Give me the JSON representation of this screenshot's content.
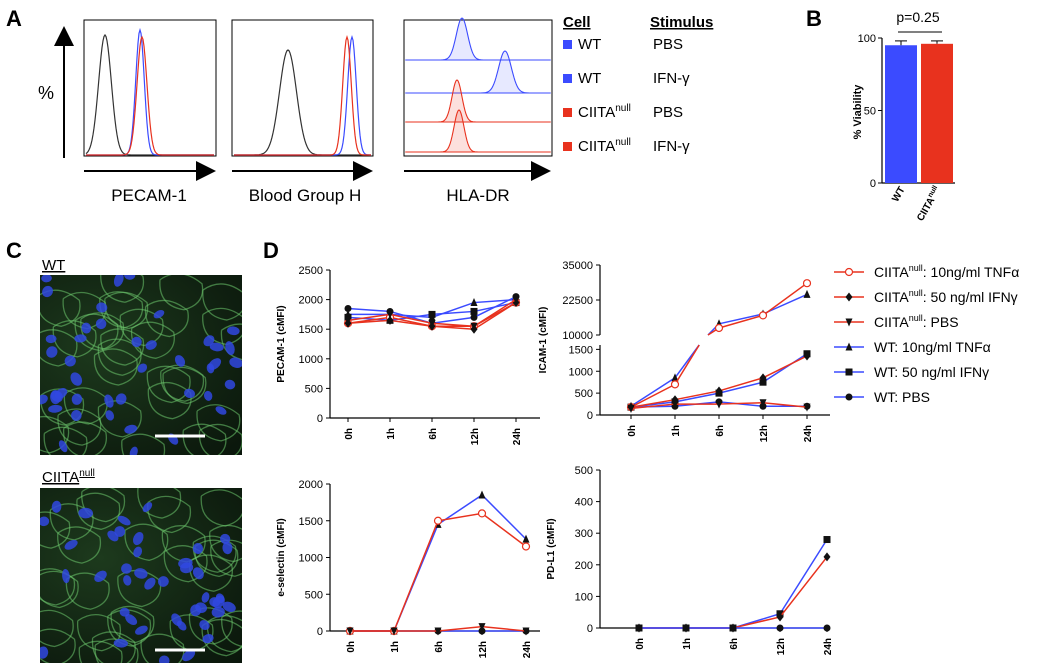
{
  "panels": {
    "A": {
      "letter": "A",
      "y_label": "%",
      "histograms": [
        {
          "xlabel": "PECAM-1"
        },
        {
          "xlabel": "Blood Group H"
        },
        {
          "xlabel": "HLA-DR"
        }
      ],
      "legend": {
        "header_cell": "Cell",
        "header_stimulus": "Stimulus",
        "rows": [
          {
            "cell": "WT",
            "sup": "",
            "stimulus": "PBS",
            "color": "#3b4bff"
          },
          {
            "cell": "WT",
            "sup": "",
            "stimulus": "IFN-γ",
            "color": "#3b4bff"
          },
          {
            "cell": "CIITA",
            "sup": "null",
            "stimulus": "PBS",
            "color": "#e8321e"
          },
          {
            "cell": "CIITA",
            "sup": "null",
            "stimulus": "IFN-γ",
            "color": "#e8321e"
          }
        ]
      }
    },
    "B": {
      "letter": "B",
      "pvalue": "p=0.25",
      "chart_data": {
        "type": "bar",
        "categories": [
          "WT",
          "CIITA"
        ],
        "category_sup": [
          "",
          "null"
        ],
        "values": [
          95,
          96
        ],
        "errors": [
          3,
          2
        ],
        "colors": [
          "#3b4bff",
          "#e8321e"
        ],
        "ylabel": "% Viability",
        "ylim": [
          0,
          100
        ],
        "yticks": [
          "0",
          "50",
          "100"
        ]
      }
    },
    "C": {
      "letter": "C",
      "label_wt": "WT",
      "label_ko": "CIITA",
      "label_ko_sup": "null"
    },
    "D": {
      "letter": "D",
      "legend": [
        {
          "text": "CIITA",
          "sup": "null",
          "rest": ": 10ng/ml TNFα",
          "color": "#e8321e",
          "marker": "circle-open"
        },
        {
          "text": "CIITA",
          "sup": "null",
          "rest": ": 50 ng/ml IFNγ",
          "color": "#e8321e",
          "marker": "diamond"
        },
        {
          "text": "CIITA",
          "sup": "null",
          "rest": ": PBS",
          "color": "#e8321e",
          "marker": "triangle-down"
        },
        {
          "text": "WT: 10ng/ml TNFα",
          "sup": "",
          "rest": "",
          "color": "#3b4bff",
          "marker": "triangle-up"
        },
        {
          "text": "WT: 50 ng/ml IFNγ",
          "sup": "",
          "rest": "",
          "color": "#3b4bff",
          "marker": "square"
        },
        {
          "text": "WT: PBS",
          "sup": "",
          "rest": "",
          "color": "#3b4bff",
          "marker": "circle"
        }
      ]
    }
  },
  "chart_data": [
    {
      "type": "line",
      "ylabel": "PECAM-1 (cMFI)",
      "categories": [
        "0h",
        "1h",
        "6h",
        "12h",
        "24h"
      ],
      "ylim": [
        0,
        2500
      ],
      "yticks": [
        0,
        500,
        1000,
        1500,
        2000,
        2500
      ],
      "series": [
        {
          "name": "WT: 10ng/ml TNFα",
          "values": [
            1750,
            1750,
            1700,
            1950,
            2000
          ]
        },
        {
          "name": "WT: 50 ng/ml IFNγ",
          "values": [
            1700,
            1650,
            1750,
            1800,
            1950
          ]
        },
        {
          "name": "WT: PBS",
          "values": [
            1850,
            1800,
            1600,
            1700,
            2050
          ]
        },
        {
          "name": "CIITA null: 10ng/ml TNFα",
          "values": [
            1600,
            1700,
            1550,
            1550,
            1950
          ]
        },
        {
          "name": "CIITA null: 50 ng/ml IFNγ",
          "values": [
            1600,
            1650,
            1550,
            1500,
            1950
          ]
        },
        {
          "name": "CIITA null: PBS",
          "values": [
            1650,
            1750,
            1600,
            1550,
            2000
          ]
        }
      ]
    },
    {
      "type": "line",
      "ylabel": "ICAM-1 (cMFI)",
      "categories": [
        "0h",
        "1h",
        "6h",
        "12h",
        "24h"
      ],
      "yticks_lower": [
        0,
        500,
        1000,
        1500
      ],
      "yticks_upper": [
        "10000",
        "22500",
        "35000"
      ],
      "series": [
        {
          "name": "WT: 10ng/ml TNFα",
          "values": [
            200,
            850,
            14000,
            17500,
            24500
          ]
        },
        {
          "name": "WT: 50 ng/ml IFNγ",
          "values": [
            180,
            300,
            500,
            750,
            1400
          ]
        },
        {
          "name": "WT: PBS",
          "values": [
            180,
            200,
            300,
            200,
            200
          ]
        },
        {
          "name": "CIITA null: 10ng/ml TNFα",
          "values": [
            180,
            700,
            12500,
            17000,
            28500
          ]
        },
        {
          "name": "CIITA null: 50 ng/ml IFNγ",
          "values": [
            180,
            350,
            550,
            850,
            1350
          ]
        },
        {
          "name": "CIITA null: PBS",
          "values": [
            150,
            250,
            250,
            280,
            180
          ]
        }
      ]
    },
    {
      "type": "line",
      "ylabel": "e-selectin (cMFI)",
      "categories": [
        "0h",
        "1h",
        "6h",
        "12h",
        "24h"
      ],
      "ylim": [
        0,
        2000
      ],
      "yticks": [
        0,
        500,
        1000,
        1500,
        2000
      ],
      "series": [
        {
          "name": "WT: 10ng/ml TNFα",
          "values": [
            0,
            0,
            1450,
            1850,
            1250
          ]
        },
        {
          "name": "WT: PBS",
          "values": [
            0,
            0,
            0,
            0,
            0
          ]
        },
        {
          "name": "CIITA null: 10ng/ml TNFα",
          "values": [
            0,
            0,
            1500,
            1600,
            1150
          ]
        },
        {
          "name": "CIITA null: PBS",
          "values": [
            0,
            0,
            0,
            60,
            0
          ]
        }
      ]
    },
    {
      "type": "line",
      "ylabel": "PD-L1 (cMFI)",
      "categories": [
        "0h",
        "1h",
        "6h",
        "12h",
        "24h"
      ],
      "ylim": [
        0,
        500
      ],
      "yticks": [
        0,
        100,
        200,
        300,
        400,
        500
      ],
      "series": [
        {
          "name": "WT: 50 ng/ml IFNγ",
          "values": [
            0,
            0,
            0,
            45,
            280
          ]
        },
        {
          "name": "CIITA null: 50 ng/ml IFNγ",
          "values": [
            0,
            0,
            0,
            35,
            225
          ]
        },
        {
          "name": "WT: PBS",
          "values": [
            0,
            0,
            0,
            0,
            0
          ]
        }
      ]
    }
  ]
}
